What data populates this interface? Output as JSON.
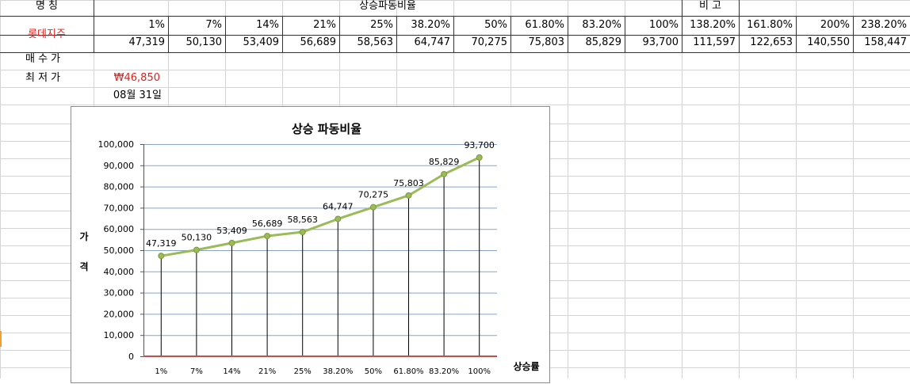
{
  "sheet": {
    "name_label": "명     칭",
    "ratio_header": "상승파동비율",
    "remark_label": "비     고",
    "stock_name": "롯데지주",
    "percents": [
      "1%",
      "7%",
      "14%",
      "21%",
      "25%",
      "38.20%",
      "50%",
      "61.80%",
      "83.20%",
      "100%",
      "138.20%",
      "161.80%",
      "200%",
      "238.20%"
    ],
    "prices": [
      "47,319",
      "50,130",
      "53,409",
      "56,689",
      "58,563",
      "64,747",
      "70,275",
      "75,803",
      "85,829",
      "93,700",
      "111,597",
      "122,653",
      "140,550",
      "158,447"
    ],
    "buy_label": "매 수 가",
    "low_label": "최 저 가",
    "low_price": "₩46,850",
    "date": "08월 31일"
  },
  "chart_data": {
    "type": "line",
    "title": "상승 파동비율",
    "xlabel": "상승률",
    "ylabel": "가\n격",
    "ylabel_chars": [
      "가",
      "격"
    ],
    "categories": [
      "1%",
      "7%",
      "14%",
      "21%",
      "25%",
      "38.20%",
      "50%",
      "61.80%",
      "83.20%",
      "100%"
    ],
    "series": [
      {
        "values": [
          47319,
          50130,
          53409,
          56689,
          58563,
          64747,
          70275,
          75803,
          85829,
          93700
        ],
        "color": "#9bbb59"
      }
    ],
    "data_labels": [
      "47,319",
      "50,130",
      "53,409",
      "56,689",
      "58,563",
      "64,747",
      "70,275",
      "75,803",
      "85,829",
      "93,700"
    ],
    "ylim": [
      0,
      100000
    ],
    "yticks": [
      0,
      10000,
      20000,
      30000,
      40000,
      50000,
      60000,
      70000,
      80000,
      90000,
      100000
    ],
    "ytick_labels": [
      "0",
      "10,000",
      "20,000",
      "30,000",
      "40,000",
      "50,000",
      "60,000",
      "70,000",
      "80,000",
      "90,000",
      "100,000"
    ],
    "drop_lines": true,
    "baseline_color": "#c0504d",
    "grid": true,
    "legend": "none"
  }
}
